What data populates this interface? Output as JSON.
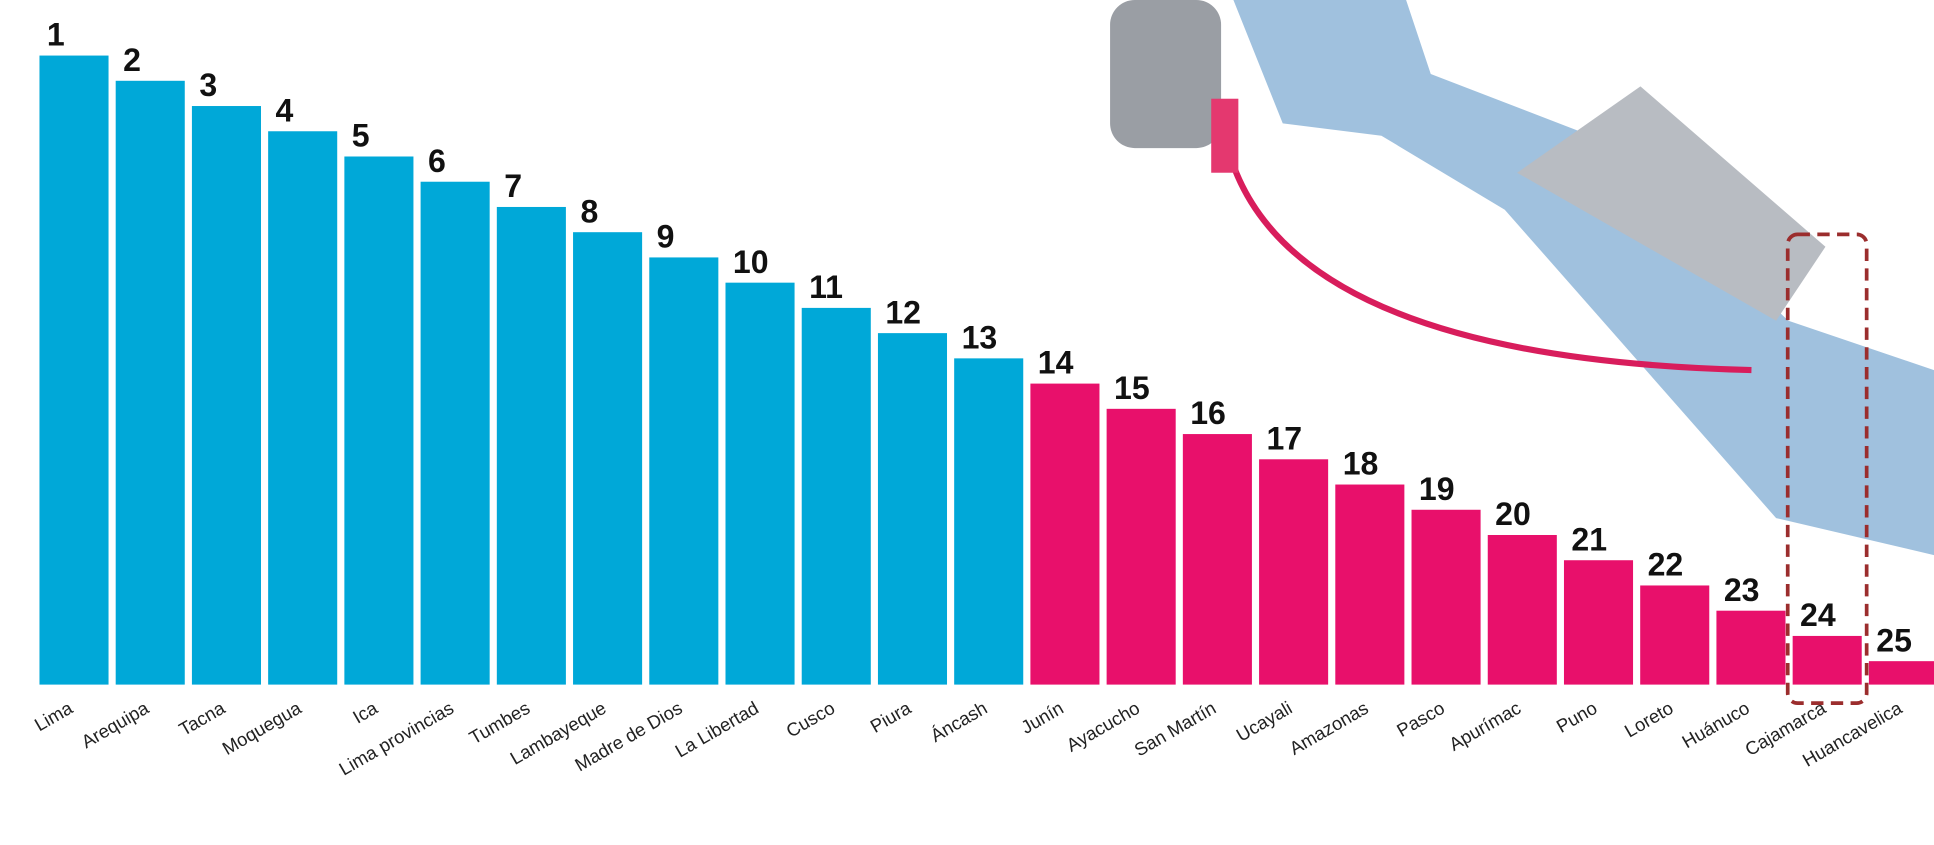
{
  "chart_data": {
    "type": "bar",
    "categories": [
      "Lima",
      "Arequipa",
      "Tacna",
      "Moquegua",
      "Ica",
      "Lima provincias",
      "Tumbes",
      "Lambayeque",
      "Madre de Dios",
      "La Libertad",
      "Cusco",
      "Piura",
      "Áncash",
      "Junín",
      "Ayacucho",
      "San Martín",
      "Ucayali",
      "Amazonas",
      "Pasco",
      "Apurímac",
      "Puno",
      "Loreto",
      "Huánuco",
      "Cajamarca",
      "Huancavelica"
    ],
    "values": [
      1,
      2,
      3,
      4,
      5,
      6,
      7,
      8,
      9,
      10,
      11,
      12,
      13,
      14,
      15,
      16,
      17,
      18,
      19,
      20,
      21,
      22,
      23,
      24,
      25
    ],
    "colors": [
      "#00a8d8",
      "#00a8d8",
      "#00a8d8",
      "#00a8d8",
      "#00a8d8",
      "#00a8d8",
      "#00a8d8",
      "#00a8d8",
      "#00a8d8",
      "#00a8d8",
      "#00a8d8",
      "#00a8d8",
      "#00a8d8",
      "#e8106b",
      "#e8106b",
      "#e8106b",
      "#e8106b",
      "#e8106b",
      "#e8106b",
      "#e8106b",
      "#e8106b",
      "#e8106b",
      "#e8106b",
      "#e8106b",
      "#e8106b"
    ],
    "highlight": "Cajamarca"
  }
}
